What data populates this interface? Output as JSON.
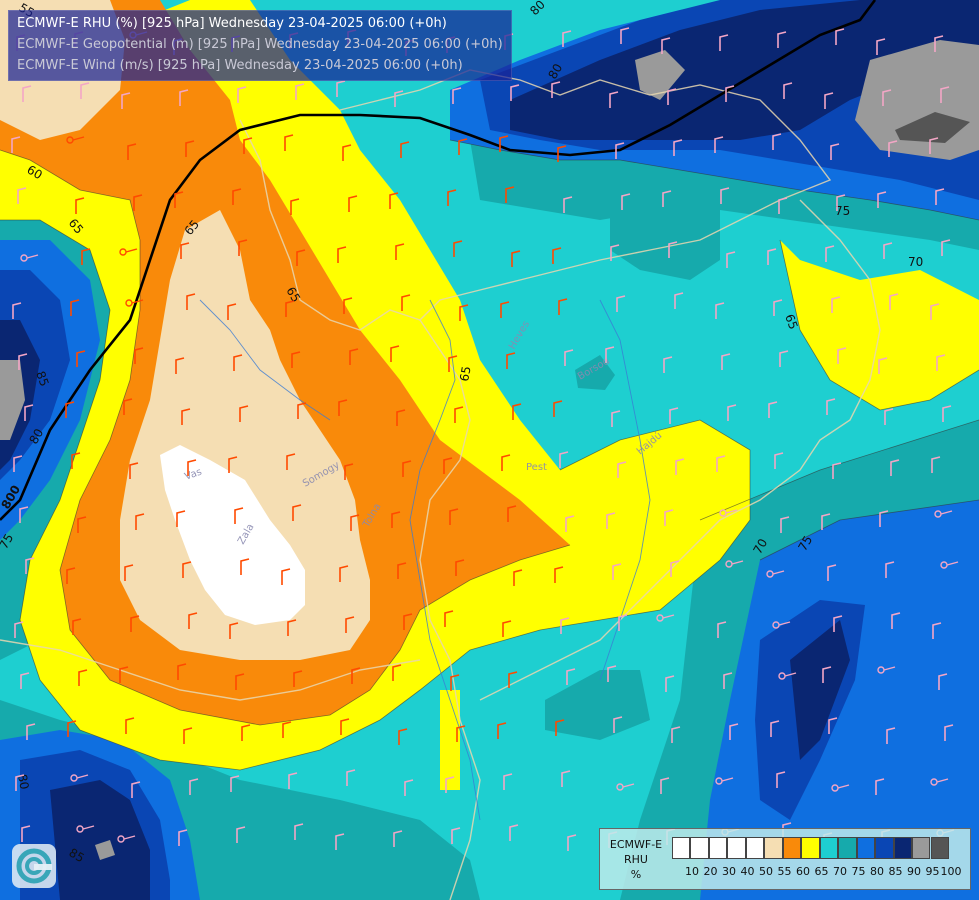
{
  "header": {
    "line1": "ECMWF-E RHU (%) [925 hPa] Wednesday 23-04-2025 06:00 (+0h)",
    "line2": "ECMWF-E Geopotential (m) [925 hPa] Wednesday 23-04-2025 06:00 (+0h)",
    "line3": "ECMWF-E Wind (m/s) [925 hPa] Wednesday 23-04-2025 06:00 (+0h)"
  },
  "legend": {
    "model": "ECMWF-E",
    "variable": "RHU",
    "unit": "%",
    "ticks": [
      "10",
      "20",
      "30",
      "40",
      "50",
      "55",
      "60",
      "65",
      "70",
      "75",
      "80",
      "85",
      "90",
      "95",
      "100"
    ],
    "colors": [
      "#ffffff",
      "#ffffff",
      "#ffffff",
      "#ffffff",
      "#ffffff",
      "#f5deb3",
      "#f98a0a",
      "#ffff00",
      "#1ecfd0",
      "#16aaac",
      "#0f6fe0",
      "#0a46b4",
      "#0a2672",
      "#9a9a9a",
      "#555555"
    ]
  },
  "contour_labels": [
    "55",
    "60",
    "65",
    "65",
    "65",
    "70",
    "70",
    "75",
    "75",
    "80",
    "80",
    "85",
    "80",
    "85",
    "75",
    "65",
    "800",
    "80",
    "85",
    "65"
  ],
  "place_labels": [
    "Vas",
    "Zala",
    "Somogy",
    "Tolna",
    "Pest",
    "Heves",
    "Borsod",
    "Hajdú"
  ],
  "colors": {
    "rhu_50": "#f5deb3",
    "rhu_55": "#f98a0a",
    "rhu_60": "#ffff00",
    "rhu_65": "#1ecfd0",
    "rhu_70": "#16aaac",
    "rhu_75": "#0f6fe0",
    "rhu_80": "#0a46b4",
    "rhu_85": "#0a2672",
    "rhu_90": "#9a9a9a",
    "rhu_95": "#555555",
    "geopotential_line": "#000000"
  }
}
